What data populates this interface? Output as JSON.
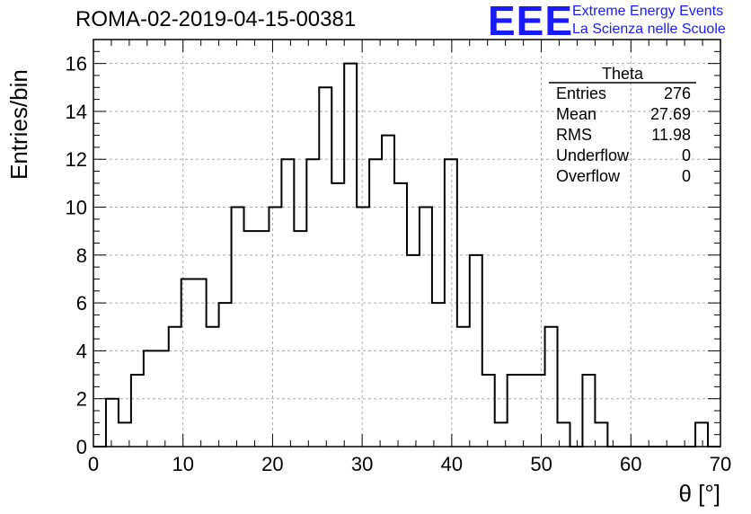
{
  "title": "ROMA-02-2019-04-15-00381",
  "logo": {
    "mark": "EEE",
    "line1": "Extreme Energy Events",
    "line2": "La Scienza nelle Scuole",
    "color": "#1a1aff"
  },
  "stats": {
    "name": "Theta",
    "rows": [
      {
        "label": "Entries",
        "value": "276"
      },
      {
        "label": "Mean",
        "value": "27.69"
      },
      {
        "label": "RMS",
        "value": "11.98"
      },
      {
        "label": "Underflow",
        "value": "0"
      },
      {
        "label": "Overflow",
        "value": "0"
      }
    ]
  },
  "chart_data": {
    "type": "histogram",
    "xlabel": "θ [°]",
    "ylabel": "Entries/bin",
    "xlim": [
      0,
      70
    ],
    "ylim": [
      0,
      17
    ],
    "grid": true,
    "bin_width": 1.4,
    "bin_edges_start": 0,
    "values": [
      0,
      2,
      1,
      3,
      4,
      4,
      5,
      7,
      7,
      5,
      6,
      10,
      9,
      9,
      10,
      12,
      9,
      12,
      15,
      11,
      16,
      10,
      12,
      13,
      11,
      8,
      10,
      6,
      12,
      5,
      8,
      3,
      1,
      3,
      3,
      3,
      5,
      1,
      0,
      3,
      1,
      0,
      0,
      0,
      0,
      0,
      0,
      0,
      1,
      0
    ],
    "xticks": [
      0,
      10,
      20,
      30,
      40,
      50,
      60,
      70
    ],
    "yticks": [
      0,
      2,
      4,
      6,
      8,
      10,
      12,
      14,
      16
    ]
  }
}
